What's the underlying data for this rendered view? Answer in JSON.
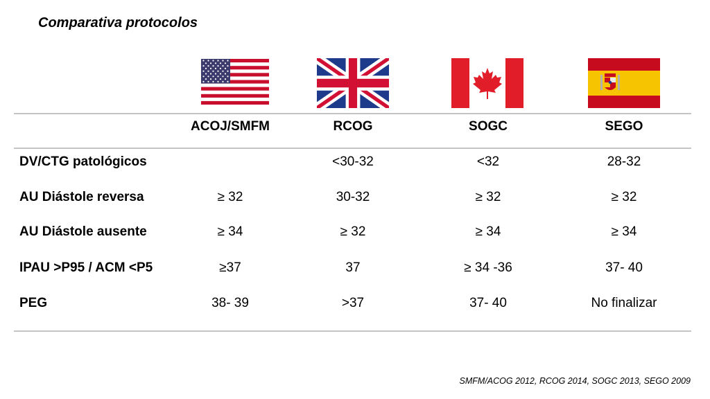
{
  "title": "Comparativa protocolos",
  "flags": [
    {
      "icon": "usa-flag-icon"
    },
    {
      "icon": "uk-flag-icon"
    },
    {
      "icon": "canada-flag-icon"
    },
    {
      "icon": "spain-flag-icon"
    }
  ],
  "table": {
    "headers": [
      "ACOJ/SMFM",
      "RCOG",
      "SOGC",
      "SEGO"
    ],
    "rows": [
      {
        "label": "DV/CTG patológicos",
        "cells": [
          "",
          "<30-32",
          "<32",
          "28-32"
        ]
      },
      {
        "label": "AU  Diástole reversa",
        "cells": [
          "≥ 32",
          "30-32",
          "≥ 32",
          "≥ 32"
        ]
      },
      {
        "label": "AU Diástole ausente",
        "cells": [
          "≥ 34",
          "≥ 32",
          "≥ 34",
          "≥ 34"
        ]
      },
      {
        "label": "IPAU >P95 / ACM <P5",
        "cells": [
          "≥37",
          "37",
          "≥ 34 -36",
          "37- 40"
        ]
      },
      {
        "label": "PEG",
        "cells": [
          "38- 39",
          ">37",
          "37- 40",
          "No finalizar"
        ]
      }
    ]
  },
  "footnote": "SMFM/ACOG 2012, RCOG 2014, SOGC 2013, SEGO 2009",
  "colors": {
    "us_red": "#c8102e",
    "us_blue": "#3c3b6e",
    "uk_blue": "#1e3a8a",
    "uk_red": "#d21034",
    "ca_red": "#e11d2a",
    "es_red": "#c60b1e",
    "es_yellow": "#f6c400",
    "rule": "#c4c4c4"
  }
}
